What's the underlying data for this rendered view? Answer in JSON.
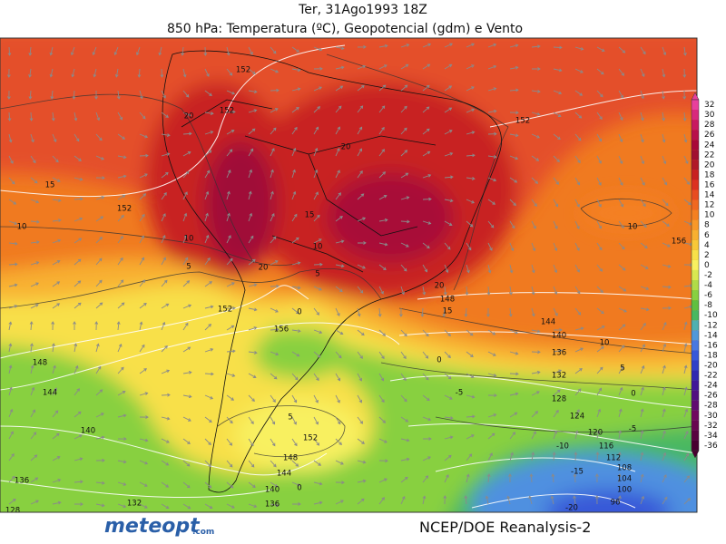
{
  "header": {
    "date": "Ter, 31Ago1993 18Z",
    "title": "850 hPa: Temperatura (ºC), Geopotencial (gdm) e Vento"
  },
  "colorbar": {
    "levels": [
      {
        "label": "32",
        "color": "#e8409c"
      },
      {
        "label": "30",
        "color": "#d8287c"
      },
      {
        "label": "28",
        "color": "#c81a60"
      },
      {
        "label": "26",
        "color": "#b8104a"
      },
      {
        "label": "24",
        "color": "#a80838"
      },
      {
        "label": "22",
        "color": "#a01030"
      },
      {
        "label": "20",
        "color": "#b01828"
      },
      {
        "label": "18",
        "color": "#c82020"
      },
      {
        "label": "16",
        "color": "#dc3020"
      },
      {
        "label": "14",
        "color": "#e84c20"
      },
      {
        "label": "12",
        "color": "#f06820"
      },
      {
        "label": "10",
        "color": "#f48020"
      },
      {
        "label": "8",
        "color": "#f89828"
      },
      {
        "label": "6",
        "color": "#f8b030"
      },
      {
        "label": "4",
        "color": "#f8c838"
      },
      {
        "label": "2",
        "color": "#f8e048"
      },
      {
        "label": "0",
        "color": "#f8f060"
      },
      {
        "label": "-2",
        "color": "#d8e850"
      },
      {
        "label": "-4",
        "color": "#b0dc48"
      },
      {
        "label": "-6",
        "color": "#88d040"
      },
      {
        "label": "-8",
        "color": "#60c040"
      },
      {
        "label": "-10",
        "color": "#48b860"
      },
      {
        "label": "-12",
        "color": "#50b0b0"
      },
      {
        "label": "-14",
        "color": "#5098d8"
      },
      {
        "label": "-16",
        "color": "#4878e0"
      },
      {
        "label": "-18",
        "color": "#3858d8"
      },
      {
        "label": "-20",
        "color": "#3040c8"
      },
      {
        "label": "-22",
        "color": "#3028b0"
      },
      {
        "label": "-24",
        "color": "#401898"
      },
      {
        "label": "-26",
        "color": "#501080"
      },
      {
        "label": "-28",
        "color": "#600c70"
      },
      {
        "label": "-30",
        "color": "#700860"
      },
      {
        "label": "-32",
        "color": "#680650"
      },
      {
        "label": "-34",
        "color": "#580440"
      },
      {
        "label": "-36",
        "color": "#480030"
      }
    ]
  },
  "map": {
    "contour_labels": [
      "152",
      "152",
      "20",
      "20",
      "152",
      "15",
      "152",
      "10",
      "10",
      "15",
      "10",
      "20",
      "5",
      "5",
      "156",
      "10",
      "20",
      "148",
      "15",
      "152",
      "0",
      "156",
      "144",
      "140",
      "10",
      "136",
      "0",
      "148",
      "132",
      "-5",
      "5",
      "128",
      "0",
      "144",
      "124",
      "5",
      "-5",
      "140",
      "120",
      "152",
      "-10",
      "116",
      "148",
      "112",
      "-15",
      "108",
      "144",
      "136",
      "104",
      "140",
      "0",
      "100",
      "132",
      "136",
      "96",
      "128",
      "-20"
    ]
  },
  "footer": {
    "logo": "meteopt",
    "logo_suffix": ".com",
    "source": "NCEP/DOE Reanalysis-2"
  }
}
